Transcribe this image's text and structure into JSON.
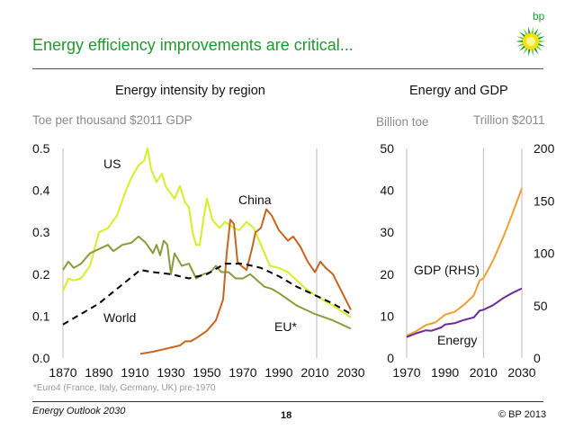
{
  "header": {
    "title": "Energy efficiency improvements are critical...",
    "logo_text": "bp"
  },
  "footer": {
    "footnote": "*Euro4 (France, Italy, Germany, UK) pre-1970",
    "publication": "Energy Outlook 2030",
    "page": "18",
    "copyright": "© BP 2013"
  },
  "colors": {
    "title": "#1f9a2a",
    "US": "#d4ee2a",
    "EU": "#8a9a3c",
    "China": "#c8641e",
    "World": "#000000",
    "GDP": "#f0a030",
    "Energy": "#6a2c9a"
  },
  "chart_data": [
    {
      "type": "line",
      "title": "Energy intensity by region",
      "ylabel": "Toe per thousand $2011 GDP",
      "xlim": [
        1870,
        2030
      ],
      "ylim": [
        0,
        0.5
      ],
      "xticks": [
        "1870",
        "1890",
        "1910",
        "1930",
        "1950",
        "1970",
        "1990",
        "2010",
        "2030"
      ],
      "yticks": [
        "0.0",
        "0.1",
        "0.2",
        "0.3",
        "0.4",
        "0.5"
      ],
      "grid": false,
      "reference_line_year": 2011,
      "series": [
        {
          "name": "US",
          "style": "solid",
          "color": "#d4ee2a",
          "points": [
            [
              1870,
              0.16
            ],
            [
              1873,
              0.19
            ],
            [
              1876,
              0.185
            ],
            [
              1880,
              0.19
            ],
            [
              1885,
              0.22
            ],
            [
              1890,
              0.3
            ],
            [
              1895,
              0.31
            ],
            [
              1900,
              0.34
            ],
            [
              1905,
              0.4
            ],
            [
              1908,
              0.43
            ],
            [
              1912,
              0.46
            ],
            [
              1915,
              0.47
            ],
            [
              1917,
              0.5
            ],
            [
              1919,
              0.45
            ],
            [
              1922,
              0.42
            ],
            [
              1925,
              0.44
            ],
            [
              1927,
              0.41
            ],
            [
              1932,
              0.38
            ],
            [
              1935,
              0.41
            ],
            [
              1938,
              0.37
            ],
            [
              1940,
              0.36
            ],
            [
              1942,
              0.3
            ],
            [
              1944,
              0.27
            ],
            [
              1946,
              0.27
            ],
            [
              1948,
              0.33
            ],
            [
              1950,
              0.38
            ],
            [
              1953,
              0.33
            ],
            [
              1957,
              0.31
            ],
            [
              1960,
              0.325
            ],
            [
              1965,
              0.31
            ],
            [
              1968,
              0.305
            ],
            [
              1972,
              0.325
            ],
            [
              1976,
              0.31
            ],
            [
              1980,
              0.27
            ],
            [
              1985,
              0.22
            ],
            [
              1990,
              0.215
            ],
            [
              1995,
              0.205
            ],
            [
              2000,
              0.185
            ],
            [
              2005,
              0.165
            ],
            [
              2010,
              0.15
            ],
            [
              2020,
              0.125
            ],
            [
              2030,
              0.097
            ]
          ]
        },
        {
          "name": "EU*",
          "style": "solid",
          "color": "#8a9a3c",
          "points": [
            [
              1870,
              0.21
            ],
            [
              1873,
              0.23
            ],
            [
              1876,
              0.215
            ],
            [
              1880,
              0.225
            ],
            [
              1885,
              0.25
            ],
            [
              1890,
              0.26
            ],
            [
              1895,
              0.27
            ],
            [
              1898,
              0.255
            ],
            [
              1903,
              0.27
            ],
            [
              1908,
              0.275
            ],
            [
              1912,
              0.29
            ],
            [
              1916,
              0.275
            ],
            [
              1920,
              0.25
            ],
            [
              1922,
              0.27
            ],
            [
              1924,
              0.245
            ],
            [
              1926,
              0.28
            ],
            [
              1928,
              0.27
            ],
            [
              1930,
              0.2
            ],
            [
              1932,
              0.25
            ],
            [
              1936,
              0.22
            ],
            [
              1940,
              0.225
            ],
            [
              1944,
              0.19
            ],
            [
              1948,
              0.2
            ],
            [
              1952,
              0.205
            ],
            [
              1955,
              0.22
            ],
            [
              1958,
              0.205
            ],
            [
              1962,
              0.205
            ],
            [
              1966,
              0.19
            ],
            [
              1970,
              0.19
            ],
            [
              1974,
              0.2
            ],
            [
              1978,
              0.185
            ],
            [
              1982,
              0.17
            ],
            [
              1986,
              0.165
            ],
            [
              1990,
              0.155
            ],
            [
              1995,
              0.14
            ],
            [
              2000,
              0.125
            ],
            [
              2005,
              0.115
            ],
            [
              2010,
              0.105
            ],
            [
              2020,
              0.09
            ],
            [
              2030,
              0.07
            ]
          ]
        },
        {
          "name": "China",
          "style": "solid",
          "color": "#c8641e",
          "points": [
            [
              1913,
              0.01
            ],
            [
              1920,
              0.015
            ],
            [
              1925,
              0.02
            ],
            [
              1930,
              0.025
            ],
            [
              1935,
              0.03
            ],
            [
              1938,
              0.04
            ],
            [
              1941,
              0.04
            ],
            [
              1945,
              0.05
            ],
            [
              1950,
              0.065
            ],
            [
              1955,
              0.09
            ],
            [
              1959,
              0.14
            ],
            [
              1961,
              0.25
            ],
            [
              1963,
              0.33
            ],
            [
              1965,
              0.32
            ],
            [
              1967,
              0.23
            ],
            [
              1969,
              0.22
            ],
            [
              1972,
              0.21
            ],
            [
              1975,
              0.26
            ],
            [
              1977,
              0.3
            ],
            [
              1980,
              0.31
            ],
            [
              1983,
              0.355
            ],
            [
              1986,
              0.34
            ],
            [
              1990,
              0.305
            ],
            [
              1995,
              0.28
            ],
            [
              1998,
              0.29
            ],
            [
              2002,
              0.265
            ],
            [
              2006,
              0.23
            ],
            [
              2010,
              0.205
            ],
            [
              2013,
              0.23
            ],
            [
              2016,
              0.215
            ],
            [
              2020,
              0.2
            ],
            [
              2030,
              0.115
            ]
          ]
        },
        {
          "name": "World",
          "style": "dashed",
          "color": "#000000",
          "points": [
            [
              1870,
              0.08
            ],
            [
              1890,
              0.13
            ],
            [
              1900,
              0.165
            ],
            [
              1913,
              0.21
            ],
            [
              1920,
              0.205
            ],
            [
              1930,
              0.2
            ],
            [
              1940,
              0.19
            ],
            [
              1950,
              0.2
            ],
            [
              1960,
              0.225
            ],
            [
              1970,
              0.225
            ],
            [
              1980,
              0.215
            ],
            [
              1990,
              0.195
            ],
            [
              2000,
              0.17
            ],
            [
              2010,
              0.15
            ],
            [
              2020,
              0.13
            ],
            [
              2030,
              0.105
            ]
          ]
        }
      ]
    },
    {
      "type": "line",
      "title": "Energy and GDP",
      "ylabel": "Billion toe",
      "y2label": "Trillion $2011",
      "xlim": [
        1970,
        2030
      ],
      "ylim": [
        0,
        50
      ],
      "y2lim": [
        0,
        200
      ],
      "xticks": [
        "1970",
        "1990",
        "2010",
        "2030"
      ],
      "yticks": [
        "0",
        "10",
        "20",
        "30",
        "40",
        "50"
      ],
      "y2ticks": [
        "0",
        "50",
        "100",
        "150",
        "200"
      ],
      "grid": false,
      "reference_line_year": 2010,
      "series": [
        {
          "name": "GDP (RHS)",
          "axis": "right",
          "color": "#f0a030",
          "points": [
            [
              1970,
              21.4
            ],
            [
              1975,
              25.7
            ],
            [
              1980,
              31.4
            ],
            [
              1985,
              34
            ],
            [
              1990,
              41.4
            ],
            [
              1995,
              44
            ],
            [
              2000,
              51
            ],
            [
              2005,
              60
            ],
            [
              2008,
              74
            ],
            [
              2010,
              76
            ],
            [
              2015,
              93
            ],
            [
              2020,
              114
            ],
            [
              2025,
              137
            ],
            [
              2030,
              162
            ]
          ]
        },
        {
          "name": "Energy",
          "axis": "left",
          "color": "#6a2c9a",
          "points": [
            [
              1970,
              5
            ],
            [
              1975,
              5.9
            ],
            [
              1980,
              6.6
            ],
            [
              1983,
              6.5
            ],
            [
              1988,
              7.3
            ],
            [
              1990,
              8
            ],
            [
              1995,
              8.3
            ],
            [
              2000,
              9.1
            ],
            [
              2005,
              9.7
            ],
            [
              2008,
              11.3
            ],
            [
              2010,
              11.5
            ],
            [
              2015,
              12.6
            ],
            [
              2020,
              14.2
            ],
            [
              2025,
              15.5
            ],
            [
              2030,
              16.6
            ]
          ]
        }
      ]
    }
  ]
}
